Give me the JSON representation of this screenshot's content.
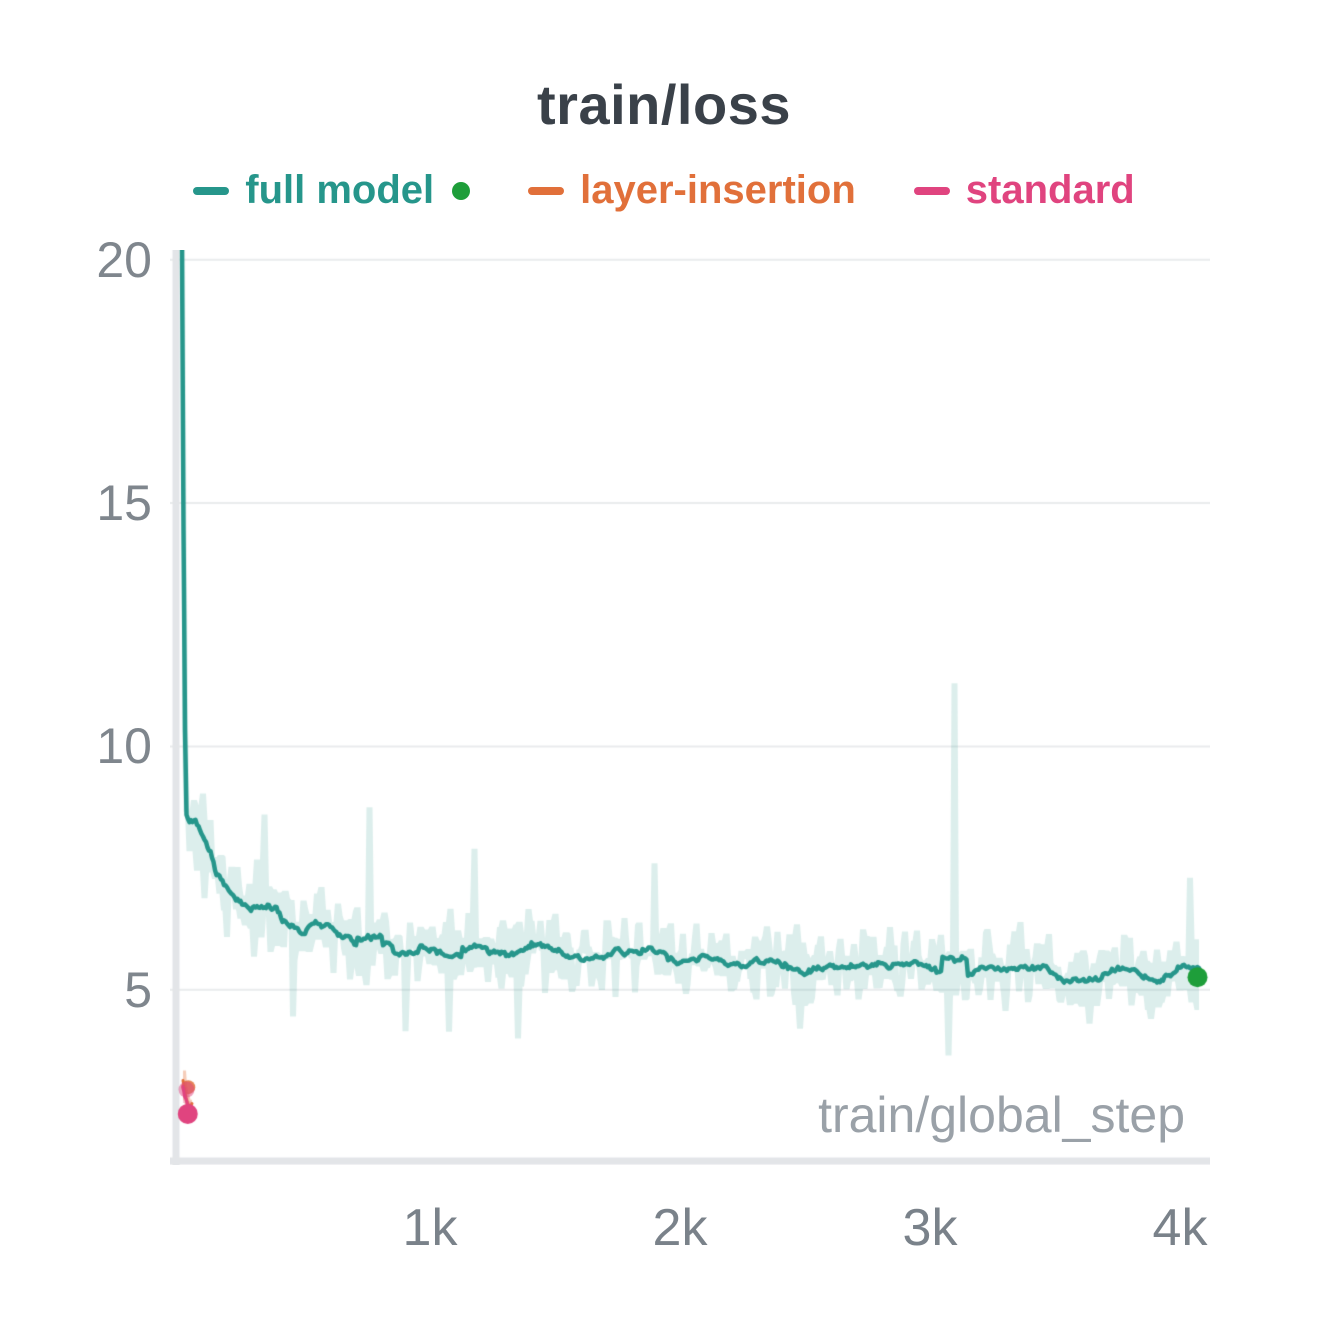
{
  "chart_data": {
    "type": "line",
    "title": "train/loss",
    "xlabel": "train/global_step",
    "ylabel": "",
    "xlim": [
      -40,
      4120
    ],
    "ylim": [
      1.4,
      20.2
    ],
    "grid": true,
    "legend_position": "top",
    "style": {
      "background": "#ffffff",
      "grid_color": "#e9ebed",
      "axis_color": "#e3e5e8",
      "title_color": "#3a4149",
      "tick_color": "#7f868d"
    },
    "x_ticks": [
      {
        "value": 1000,
        "label": "1k"
      },
      {
        "value": 2000,
        "label": "2k"
      },
      {
        "value": 3000,
        "label": "3k"
      },
      {
        "value": 4000,
        "label": "4k"
      }
    ],
    "y_ticks": [
      {
        "value": 20,
        "label": "20"
      },
      {
        "value": 15,
        "label": "15"
      },
      {
        "value": 10,
        "label": "10"
      },
      {
        "value": 5,
        "label": "5"
      }
    ],
    "series": [
      {
        "name": "full model",
        "color": "#26968b",
        "band_color": "rgba(38,150,139,0.16)",
        "state_dot_color": "#1e9e3a",
        "seed": 11,
        "smooth": 8,
        "line_width": 4.5,
        "trend": {
          "x": [
            8,
            14,
            20,
            26,
            40,
            60,
            80,
            110,
            140,
            170,
            200,
            250,
            300,
            350,
            400,
            500,
            600,
            700,
            800,
            900,
            1000,
            1100,
            1200,
            1300,
            1400,
            1500,
            1600,
            1700,
            1800,
            1900,
            2000,
            2200,
            2400,
            2600,
            2800,
            3000,
            3200,
            3400,
            3600,
            3800,
            4000,
            4080
          ],
          "y": [
            20.3,
            14.5,
            10.5,
            8.7,
            8.45,
            8.55,
            8.3,
            7.9,
            7.45,
            7.15,
            6.9,
            6.75,
            6.65,
            6.6,
            6.5,
            6.3,
            6.2,
            6.1,
            6.05,
            5.95,
            5.9,
            5.88,
            5.85,
            5.8,
            5.82,
            5.75,
            5.72,
            5.7,
            5.68,
            5.65,
            5.6,
            5.58,
            5.52,
            5.5,
            5.45,
            5.42,
            5.4,
            5.38,
            5.35,
            5.32,
            5.3,
            5.27
          ],
          "hw": [
            0.15,
            0.2,
            0.3,
            0.5,
            0.9,
            1.3,
            1.2,
            1.1,
            1.05,
            1.0,
            1.0,
            1.0,
            1.0,
            1.0,
            0.95,
            0.95,
            0.9,
            0.9,
            0.9,
            0.9,
            0.85,
            0.85,
            0.85,
            0.85,
            0.85,
            0.85,
            0.8,
            0.8,
            0.8,
            0.8,
            0.8,
            0.8,
            0.8,
            0.8,
            0.8,
            0.8,
            0.8,
            0.8,
            0.8,
            0.8,
            0.85,
            0.9
          ]
        },
        "outliers": [
          {
            "x": 340,
            "y": 8.6
          },
          {
            "x": 450,
            "y": 4.45
          },
          {
            "x": 760,
            "y": 8.75
          },
          {
            "x": 900,
            "y": 4.15
          },
          {
            "x": 1180,
            "y": 7.9
          },
          {
            "x": 1350,
            "y": 4.0
          },
          {
            "x": 1900,
            "y": 7.6
          },
          {
            "x": 2480,
            "y": 4.2
          },
          {
            "x": 3075,
            "y": 3.65
          },
          {
            "x": 3100,
            "y": 11.3
          },
          {
            "x": 3640,
            "y": 4.3
          },
          {
            "x": 4040,
            "y": 7.3
          }
        ],
        "markers": [],
        "end_marker": {
          "x": 4070,
          "y": 5.26,
          "r": 10,
          "color": "#1e9e3a"
        }
      },
      {
        "name": "layer-insertion",
        "color": "#e1703a",
        "band_color": "rgba(225,112,58,0.35)",
        "seed": 5,
        "smooth": 1,
        "line_width": 3,
        "trend": {
          "x": [
            12,
            20,
            30,
            40,
            50
          ],
          "y": [
            3.1,
            2.85,
            2.7,
            2.58,
            2.5
          ],
          "hw": [
            0.45,
            0.5,
            0.5,
            0.45,
            0.4
          ]
        },
        "outliers": [],
        "markers": [
          {
            "x": 33,
            "y": 3.0,
            "r": 7,
            "alpha": 0.85
          }
        ]
      },
      {
        "name": "standard",
        "color": "#e0447f",
        "band_color": "rgba(224,68,127,0.3)",
        "seed": 9,
        "smooth": 1,
        "line_width": 3,
        "trend": {
          "x": [
            12,
            20,
            30,
            40,
            50
          ],
          "y": [
            2.85,
            2.6,
            2.5,
            2.42,
            2.4
          ],
          "hw": [
            0.5,
            0.55,
            0.55,
            0.5,
            0.45
          ]
        },
        "outliers": [],
        "markers": [
          {
            "x": 26,
            "y": 2.95,
            "r": 8,
            "alpha": 0.5
          },
          {
            "x": 31,
            "y": 2.45,
            "r": 10,
            "alpha": 1
          }
        ]
      }
    ]
  }
}
